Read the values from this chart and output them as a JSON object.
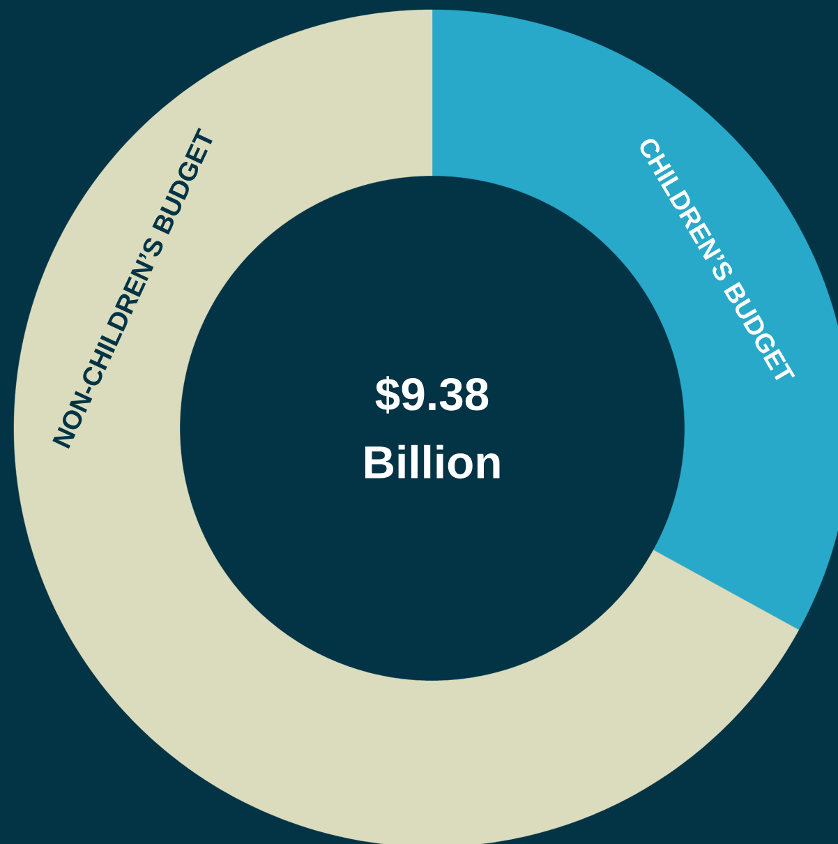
{
  "chart_data": {
    "type": "donut",
    "categories": [
      "CHILDREN’S BUDGET",
      "NON-CHILDREN’S BUDGET"
    ],
    "values": [
      33,
      67
    ],
    "colors": [
      "#29a9c9",
      "#dbdcbd"
    ],
    "annotations": [
      "$9.38",
      "Billion"
    ]
  }
}
